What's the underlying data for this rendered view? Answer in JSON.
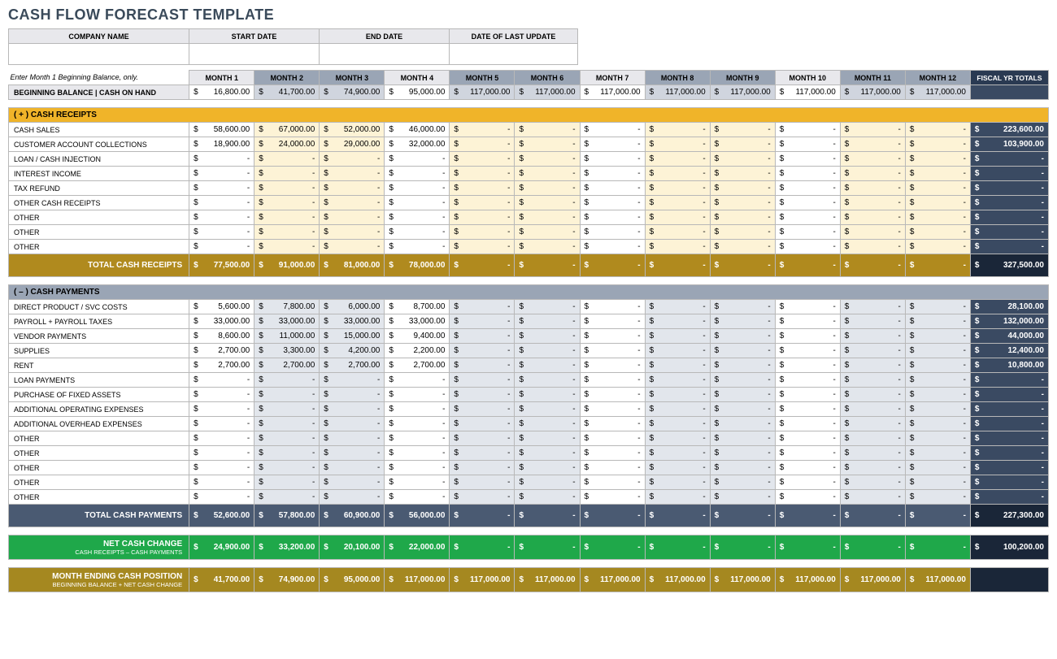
{
  "title": "CASH FLOW FORECAST TEMPLATE",
  "meta_headers": [
    "COMPANY NAME",
    "START DATE",
    "END DATE",
    "DATE OF LAST UPDATE"
  ],
  "instruction": "Enter Month 1 Beginning Balance, only.",
  "month_labels": [
    "MONTH 1",
    "MONTH 2",
    "MONTH 3",
    "MONTH 4",
    "MONTH 5",
    "MONTH 6",
    "MONTH 7",
    "MONTH 8",
    "MONTH 9",
    "MONTH 10",
    "MONTH 11",
    "MONTH 12"
  ],
  "fiscal_label": "FISCAL YR TOTALS",
  "alt_months": [
    1,
    2,
    4,
    5,
    7,
    8,
    10,
    11
  ],
  "beginning": {
    "label": "BEGINNING BALANCE  |  CASH ON HAND",
    "values": [
      "16,800.00",
      "41,700.00",
      "74,900.00",
      "95,000.00",
      "117,000.00",
      "117,000.00",
      "117,000.00",
      "117,000.00",
      "117,000.00",
      "117,000.00",
      "117,000.00",
      "117,000.00"
    ]
  },
  "receipts": {
    "header": "( + )   CASH RECEIPTS",
    "rows": [
      {
        "label": "CASH SALES",
        "v": [
          "58,600.00",
          "67,000.00",
          "52,000.00",
          "46,000.00",
          "-",
          "-",
          "-",
          "-",
          "-",
          "-",
          "-",
          "-"
        ],
        "fy": "223,600.00"
      },
      {
        "label": "CUSTOMER ACCOUNT COLLECTIONS",
        "v": [
          "18,900.00",
          "24,000.00",
          "29,000.00",
          "32,000.00",
          "-",
          "-",
          "-",
          "-",
          "-",
          "-",
          "-",
          "-"
        ],
        "fy": "103,900.00"
      },
      {
        "label": "LOAN / CASH INJECTION",
        "v": [
          "-",
          "-",
          "-",
          "-",
          "-",
          "-",
          "-",
          "-",
          "-",
          "-",
          "-",
          "-"
        ],
        "fy": "-"
      },
      {
        "label": "INTEREST INCOME",
        "v": [
          "-",
          "-",
          "-",
          "-",
          "-",
          "-",
          "-",
          "-",
          "-",
          "-",
          "-",
          "-"
        ],
        "fy": "-"
      },
      {
        "label": "TAX REFUND",
        "v": [
          "-",
          "-",
          "-",
          "-",
          "-",
          "-",
          "-",
          "-",
          "-",
          "-",
          "-",
          "-"
        ],
        "fy": "-"
      },
      {
        "label": "OTHER CASH RECEIPTS",
        "v": [
          "-",
          "-",
          "-",
          "-",
          "-",
          "-",
          "-",
          "-",
          "-",
          "-",
          "-",
          "-"
        ],
        "fy": "-"
      },
      {
        "label": "OTHER",
        "v": [
          "-",
          "-",
          "-",
          "-",
          "-",
          "-",
          "-",
          "-",
          "-",
          "-",
          "-",
          "-"
        ],
        "fy": "-"
      },
      {
        "label": "OTHER",
        "v": [
          "-",
          "-",
          "-",
          "-",
          "-",
          "-",
          "-",
          "-",
          "-",
          "-",
          "-",
          "-"
        ],
        "fy": "-"
      },
      {
        "label": "OTHER",
        "v": [
          "-",
          "-",
          "-",
          "-",
          "-",
          "-",
          "-",
          "-",
          "-",
          "-",
          "-",
          "-"
        ],
        "fy": "-"
      }
    ],
    "total_label": "TOTAL CASH RECEIPTS",
    "totals": [
      "77,500.00",
      "91,000.00",
      "81,000.00",
      "78,000.00",
      "-",
      "-",
      "-",
      "-",
      "-",
      "-",
      "-",
      "-"
    ],
    "total_fy": "327,500.00"
  },
  "payments": {
    "header": "( – )   CASH PAYMENTS",
    "rows": [
      {
        "label": "DIRECT PRODUCT / SVC COSTS",
        "v": [
          "5,600.00",
          "7,800.00",
          "6,000.00",
          "8,700.00",
          "-",
          "-",
          "-",
          "-",
          "-",
          "-",
          "-",
          "-"
        ],
        "fy": "28,100.00"
      },
      {
        "label": "PAYROLL + PAYROLL TAXES",
        "v": [
          "33,000.00",
          "33,000.00",
          "33,000.00",
          "33,000.00",
          "-",
          "-",
          "-",
          "-",
          "-",
          "-",
          "-",
          "-"
        ],
        "fy": "132,000.00"
      },
      {
        "label": "VENDOR PAYMENTS",
        "v": [
          "8,600.00",
          "11,000.00",
          "15,000.00",
          "9,400.00",
          "-",
          "-",
          "-",
          "-",
          "-",
          "-",
          "-",
          "-"
        ],
        "fy": "44,000.00"
      },
      {
        "label": "SUPPLIES",
        "v": [
          "2,700.00",
          "3,300.00",
          "4,200.00",
          "2,200.00",
          "-",
          "-",
          "-",
          "-",
          "-",
          "-",
          "-",
          "-"
        ],
        "fy": "12,400.00"
      },
      {
        "label": "RENT",
        "v": [
          "2,700.00",
          "2,700.00",
          "2,700.00",
          "2,700.00",
          "-",
          "-",
          "-",
          "-",
          "-",
          "-",
          "-",
          "-"
        ],
        "fy": "10,800.00"
      },
      {
        "label": "LOAN PAYMENTS",
        "v": [
          "-",
          "-",
          "-",
          "-",
          "-",
          "-",
          "-",
          "-",
          "-",
          "-",
          "-",
          "-"
        ],
        "fy": "-"
      },
      {
        "label": "PURCHASE OF FIXED ASSETS",
        "v": [
          "-",
          "-",
          "-",
          "-",
          "-",
          "-",
          "-",
          "-",
          "-",
          "-",
          "-",
          "-"
        ],
        "fy": "-"
      },
      {
        "label": "ADDITIONAL OPERATING EXPENSES",
        "v": [
          "-",
          "-",
          "-",
          "-",
          "-",
          "-",
          "-",
          "-",
          "-",
          "-",
          "-",
          "-"
        ],
        "fy": "-"
      },
      {
        "label": "ADDITIONAL OVERHEAD EXPENSES",
        "v": [
          "-",
          "-",
          "-",
          "-",
          "-",
          "-",
          "-",
          "-",
          "-",
          "-",
          "-",
          "-"
        ],
        "fy": "-"
      },
      {
        "label": "OTHER",
        "v": [
          "-",
          "-",
          "-",
          "-",
          "-",
          "-",
          "-",
          "-",
          "-",
          "-",
          "-",
          "-"
        ],
        "fy": "-"
      },
      {
        "label": "OTHER",
        "v": [
          "-",
          "-",
          "-",
          "-",
          "-",
          "-",
          "-",
          "-",
          "-",
          "-",
          "-",
          "-"
        ],
        "fy": "-"
      },
      {
        "label": "OTHER",
        "v": [
          "-",
          "-",
          "-",
          "-",
          "-",
          "-",
          "-",
          "-",
          "-",
          "-",
          "-",
          "-"
        ],
        "fy": "-"
      },
      {
        "label": "OTHER",
        "v": [
          "-",
          "-",
          "-",
          "-",
          "-",
          "-",
          "-",
          "-",
          "-",
          "-",
          "-",
          "-"
        ],
        "fy": "-"
      },
      {
        "label": "OTHER",
        "v": [
          "-",
          "-",
          "-",
          "-",
          "-",
          "-",
          "-",
          "-",
          "-",
          "-",
          "-",
          "-"
        ],
        "fy": "-"
      }
    ],
    "total_label": "TOTAL CASH PAYMENTS",
    "totals": [
      "52,600.00",
      "57,800.00",
      "60,900.00",
      "56,000.00",
      "-",
      "-",
      "-",
      "-",
      "-",
      "-",
      "-",
      "-"
    ],
    "total_fy": "227,300.00"
  },
  "net": {
    "label": "NET CASH CHANGE",
    "sub": "CASH RECEIPTS – CASH PAYMENTS",
    "values": [
      "24,900.00",
      "33,200.00",
      "20,100.00",
      "22,000.00",
      "-",
      "-",
      "-",
      "-",
      "-",
      "-",
      "-",
      "-"
    ],
    "fy": "100,200.00"
  },
  "position": {
    "label": "MONTH ENDING CASH POSITION",
    "sub": "BEGINNING BALANCE + NET CASH CHANGE",
    "values": [
      "41,700.00",
      "74,900.00",
      "95,000.00",
      "117,000.00",
      "117,000.00",
      "117,000.00",
      "117,000.00",
      "117,000.00",
      "117,000.00",
      "117,000.00",
      "117,000.00",
      "117,000.00"
    ],
    "fy": ""
  },
  "colors": {
    "title": "#3a4a5a",
    "receipts_hdr": "#f0b429",
    "receipts_alt": "#fdf3d6",
    "receipts_total": "#b08a1e",
    "payments_hdr": "#9aa5b5",
    "payments_alt": "#e2e6ec",
    "payments_total": "#4a5a72",
    "net": "#1fa84a",
    "position": "#a58820",
    "fy_bg": "#3a4a62",
    "fy_total_bg": "#1a2638"
  }
}
